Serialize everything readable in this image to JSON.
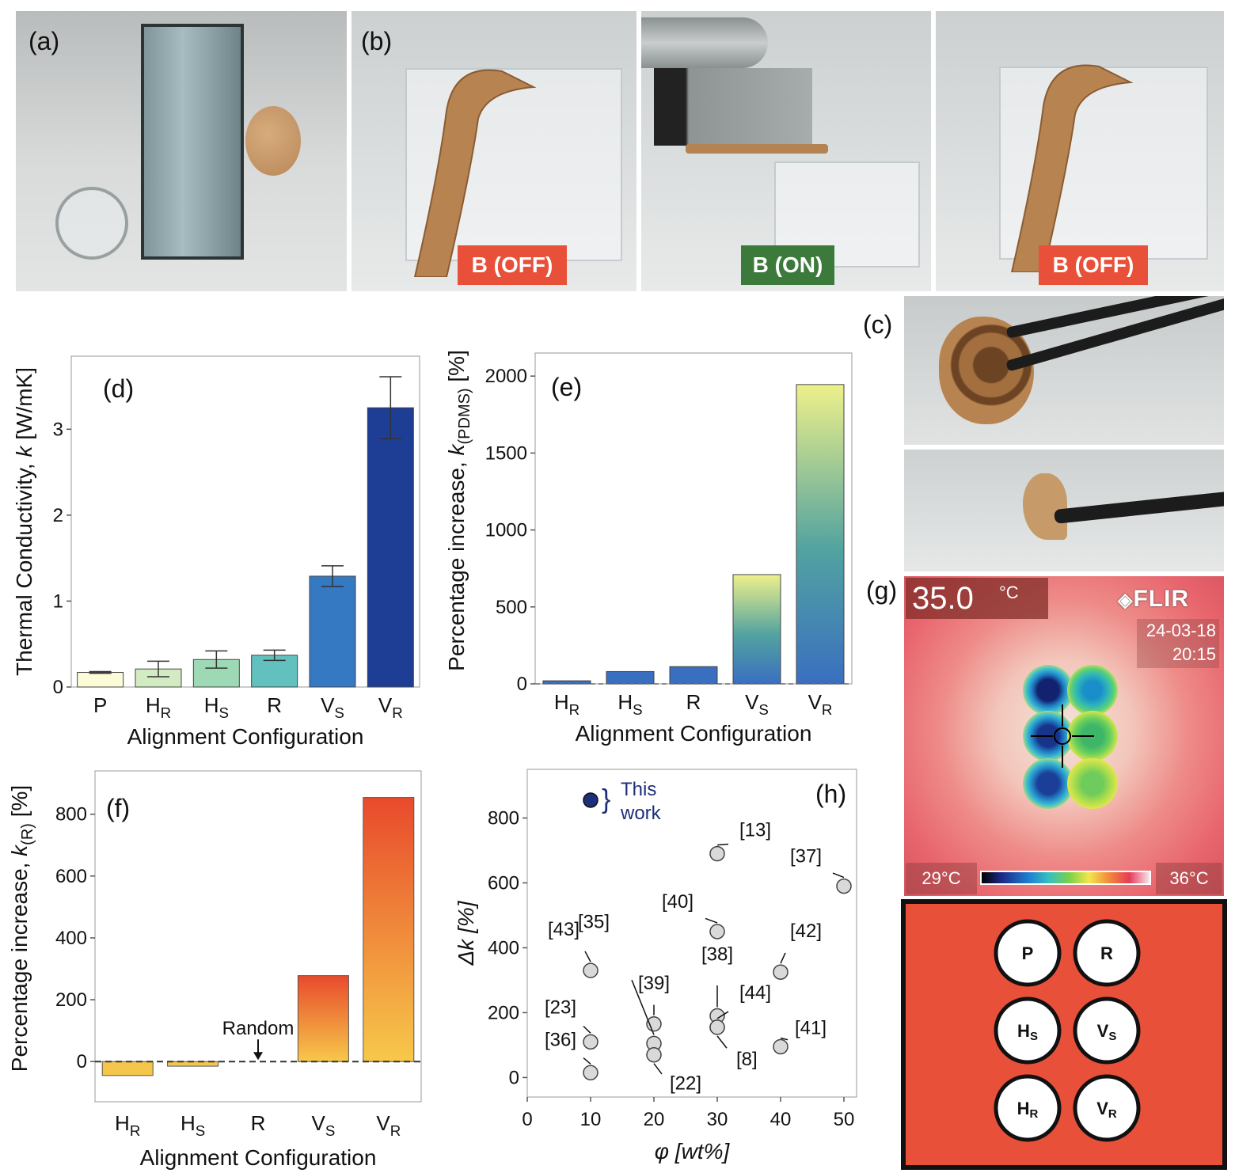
{
  "panel_labels": {
    "a": "(a)",
    "b": "(b)",
    "c": "(c)",
    "d": "(d)",
    "e": "(e)",
    "f": "(f)",
    "g": "(g)",
    "h": "(h)"
  },
  "badges": {
    "off1": "B (OFF)",
    "on": "B (ON)",
    "off2": "B (OFF)"
  },
  "colors": {
    "off_badge": "#e8503a",
    "on_badge": "#3b7a3a",
    "pad_orange": "#e8503a"
  },
  "thermal": {
    "temp_value": "35.0",
    "temp_unit": "°C",
    "brand": "FLIR",
    "date": "24-03-18",
    "time": "20:15",
    "scale_min": "29°C",
    "scale_max": "36°C"
  },
  "layout_legend": {
    "cells": [
      {
        "main": "P",
        "sub": ""
      },
      {
        "main": "R",
        "sub": ""
      },
      {
        "main": "H",
        "sub": "S"
      },
      {
        "main": "V",
        "sub": "S"
      },
      {
        "main": "H",
        "sub": "R"
      },
      {
        "main": "V",
        "sub": "R"
      }
    ]
  },
  "chart_data": [
    {
      "id": "d",
      "type": "bar",
      "xlabel": "Alignment Configuration",
      "ylabel": "Thermal Conductivity, k [W/mK]",
      "categories": [
        {
          "main": "P",
          "sub": ""
        },
        {
          "main": "H",
          "sub": "R"
        },
        {
          "main": "H",
          "sub": "S"
        },
        {
          "main": "R",
          "sub": ""
        },
        {
          "main": "V",
          "sub": "S"
        },
        {
          "main": "V",
          "sub": "R"
        }
      ],
      "values": [
        0.17,
        0.21,
        0.32,
        0.37,
        1.29,
        3.25
      ],
      "errors": [
        0.01,
        0.09,
        0.1,
        0.06,
        0.12,
        0.36
      ],
      "colors": [
        "#fdfcd8",
        "#d3ebc2",
        "#9ed9b6",
        "#62c0bf",
        "#3579c2",
        "#1e3e96"
      ],
      "yticks": [
        0,
        1,
        2,
        3
      ],
      "ylim": [
        0,
        3.85
      ]
    },
    {
      "id": "e",
      "type": "bar",
      "xlabel": "Alignment Configuration",
      "ylabel": "Percentage increase, k(PDMS) [%]",
      "ylabel_main": "Percentage increase, ",
      "ylabel_k": "k",
      "ylabel_sub": "(PDMS)",
      "ylabel_unit": " [%]",
      "categories": [
        {
          "main": "H",
          "sub": "R"
        },
        {
          "main": "H",
          "sub": "S"
        },
        {
          "main": "R",
          "sub": ""
        },
        {
          "main": "V",
          "sub": "S"
        },
        {
          "main": "V",
          "sub": "R"
        }
      ],
      "values": [
        20,
        80,
        112,
        710,
        1945
      ],
      "yticks": [
        0,
        500,
        1000,
        1500,
        2000
      ],
      "ylim": [
        0,
        2150
      ]
    },
    {
      "id": "f",
      "type": "bar",
      "xlabel": "Alignment Configuration",
      "ylabel_main": "Percentage increase, ",
      "ylabel_k": "k",
      "ylabel_sub": "(R)",
      "ylabel_unit": " [%]",
      "categories": [
        {
          "main": "H",
          "sub": "R"
        },
        {
          "main": "H",
          "sub": "S"
        },
        {
          "main": "R",
          "sub": ""
        },
        {
          "main": "V",
          "sub": "S"
        },
        {
          "main": "V",
          "sub": "R"
        }
      ],
      "values": [
        -45,
        -15,
        0,
        278,
        854
      ],
      "yticks": [
        0,
        200,
        400,
        600,
        800
      ],
      "ylim": [
        -130,
        940
      ],
      "annotation": "Random"
    },
    {
      "id": "h",
      "type": "scatter",
      "xlabel": "φ [wt%]",
      "ylabel": "Δk [%]",
      "xticks": [
        0,
        10,
        20,
        30,
        40,
        50
      ],
      "yticks": [
        0,
        200,
        400,
        600,
        800
      ],
      "xlim": [
        0,
        52
      ],
      "ylim": [
        -60,
        950
      ],
      "this_work_label": [
        "This",
        "work"
      ],
      "this_work": {
        "x": 10,
        "y": 855
      },
      "points": [
        {
          "ref": "[13]",
          "x": 30,
          "y": 690
        },
        {
          "ref": "[37]",
          "x": 50,
          "y": 590
        },
        {
          "ref": "[40]",
          "x": 30,
          "y": 450
        },
        {
          "ref": "[43]",
          "x": 10,
          "y": 330
        },
        {
          "ref": "[42]",
          "x": 40,
          "y": 325
        },
        {
          "ref": "[39]",
          "x": 20,
          "y": 165
        },
        {
          "ref": "[38]",
          "x": 30,
          "y": 190
        },
        {
          "ref": "[44]",
          "x": 30,
          "y": 155
        },
        {
          "ref": "[23]",
          "x": 10,
          "y": 110
        },
        {
          "ref": "[35]",
          "x": 20,
          "y": 105
        },
        {
          "ref": "[41]",
          "x": 40,
          "y": 95
        },
        {
          "ref": "[22]",
          "x": 20,
          "y": 70
        },
        {
          "ref": "[36]",
          "x": 10,
          "y": 15
        },
        {
          "ref": "[8]",
          "x": 30,
          "y": 155
        }
      ]
    }
  ]
}
